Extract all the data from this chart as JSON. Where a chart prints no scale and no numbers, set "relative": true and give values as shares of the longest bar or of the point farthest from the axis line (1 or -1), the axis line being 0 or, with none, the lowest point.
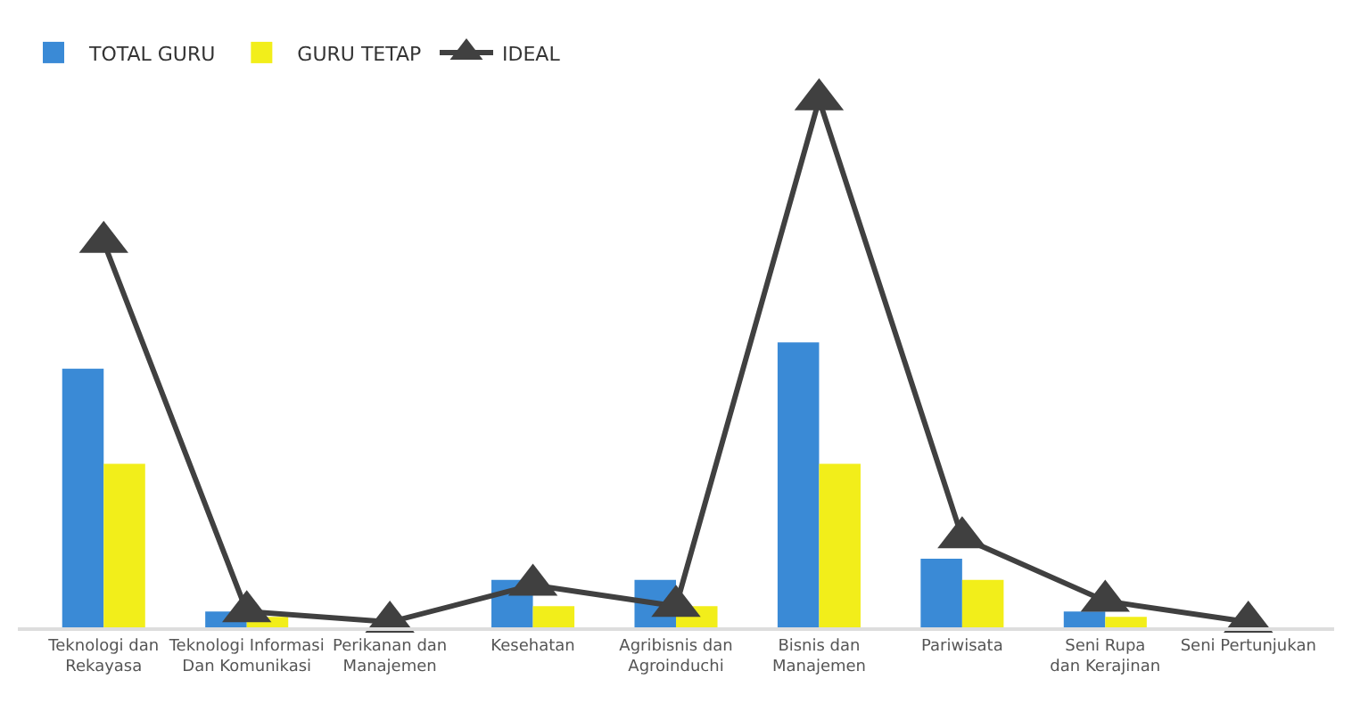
{
  "chart_data": {
    "type": "bar",
    "relative": true,
    "legend": "top left",
    "marker": "triangle",
    "line_style": "solid",
    "categories": [
      "Teknologi dan\nRekayasa",
      "Teknologi Informasi\nDan Komunikasi",
      "Perikanan dan\nManajemen",
      "Kesehatan",
      "Agribisnis dan\nAgroinduchi",
      "Bisnis dan\nManajemen",
      "Pariwisata",
      "Seni Rupa\ndan Kerajinan",
      "Seni Pertunjukan"
    ],
    "series": [
      {
        "name": "TOTAL GURU",
        "color": "#3a8ad6",
        "values": [
          0.49,
          0.03,
          0,
          0.09,
          0.09,
          0.54,
          0.13,
          0.03,
          0
        ]
      },
      {
        "name": "GURU TETAP",
        "color": "#f2ee1a",
        "values": [
          0.31,
          0.02,
          0,
          0.04,
          0.04,
          0.31,
          0.09,
          0.02,
          0
        ]
      },
      {
        "name": "IDEAL",
        "type": "line",
        "color": "#404040",
        "values": [
          0.73,
          0.03,
          0.01,
          0.08,
          0.04,
          1,
          0.17,
          0.05,
          0.01
        ]
      }
    ]
  }
}
